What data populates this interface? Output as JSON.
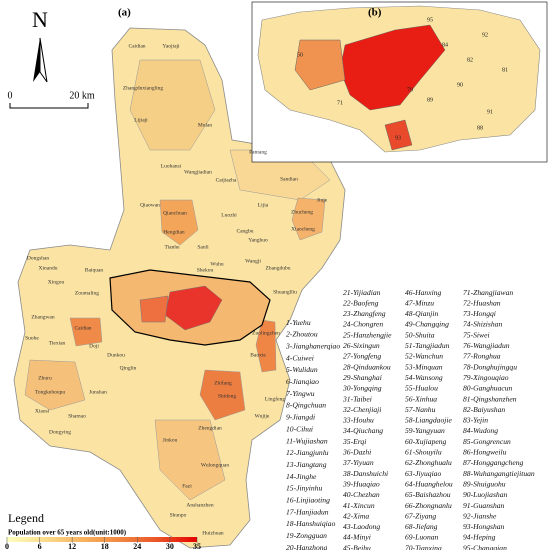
{
  "panel_labels": [
    "(a)",
    "(b)"
  ],
  "north_arrow": "N",
  "scale_bar": {
    "start": "0",
    "end": "20 km"
  },
  "place_labels": [
    "Caidian",
    "Yaojiaji",
    "Zhangduxiangling",
    "Lijiaji",
    "Mulan",
    "Luohansi",
    "Wangjiadian",
    "Caijiazha",
    "Pantang",
    "Sandian",
    "Qiaowan",
    "Qianchuan",
    "Hengdian",
    "Luozhi",
    "Lijia",
    "Zhucheng",
    "Xiaocheng",
    "Jiuje",
    "Cangbu",
    "Wangji",
    "Tianhe",
    "Sanli",
    "Wuhu",
    "Shekou",
    "Yanghuo",
    "Zhangdubu",
    "Shuanglliu",
    "Dongshan",
    "Xinandu",
    "Baiquan",
    "Xingou",
    "Zoumaling",
    "Zhangwan",
    "Caidian",
    "Suohe",
    "Tiexian",
    "Doji",
    "Dunkou",
    "Zhuru",
    "Tongkehoupu",
    "Xiaosi",
    "Shamao",
    "Junshan",
    "Qinglin",
    "Zhifang",
    "Shidong",
    "Lingfeng",
    "Wujije",
    "Zhengdian",
    "Jinkou",
    "Wulongquan",
    "Fazi",
    "Anshanzhen",
    "Shunpo",
    "Huizhuan",
    "Zuolingzhen",
    "Baoxie",
    "Dongying"
  ],
  "inset_labels": [
    "92",
    "91",
    "93",
    "90",
    "89",
    "84",
    "71",
    "82",
    "81",
    "95",
    "88",
    "79",
    "50"
  ],
  "district_list": [
    [
      "1-Yuehu",
      "2-Zhoutou",
      "3-Jianghanerqiao",
      "4-Cuiwei",
      "5-Wulidun",
      "6-Jianqiao",
      "7-Yingwu",
      "8-Qingchuan",
      "9-Jiangdi",
      "10-Cihui",
      "11-Wujiashan",
      "12-Jiangjunlu",
      "13-Jiangtang",
      "14-Jinghe",
      "15-Jinyinhu",
      "16-Linjiaoting",
      "17-Hanjiadun",
      "18-Hanshuiqiao",
      "19-Zongguan",
      "20-Hanzhong"
    ],
    [
      "21-Yijiadian",
      "22-Baofeng",
      "23-Zhangfeng",
      "24-Chongren",
      "25-Hanzhengjie",
      "26-Sixingun",
      "27-Yongfeng",
      "28-Qinduankou",
      "29-Shanghai",
      "30-Yongqing",
      "31-Taibei",
      "32-Chenjiaji",
      "33-Houhu",
      "34-Qiuchang",
      "35-Erqi",
      "36-Dazhi",
      "37-Yiyuan",
      "38-Danshuichi",
      "39-Huaqiao",
      "40-Chezhan",
      "41-Xincun",
      "42-Xima",
      "43-Laodong",
      "44-Minyi",
      "45-Beihu"
    ],
    [
      "46-Hanxing",
      "47-Minzu",
      "48-Qianjin",
      "49-Changqing",
      "50-Shuita",
      "51-Tangjiadun",
      "52-Wanchun",
      "53-Minquan",
      "54-Wansong",
      "55-Hualou",
      "56-Xinhua",
      "57-Nanhu",
      "58-Liangdaojie",
      "59-Yangyuan",
      "60-Xujiapeng",
      "61-Shouyilu",
      "62-Zhonghualu",
      "63-Jiyuqiao",
      "64-Huanghelou",
      "65-Baishazhou",
      "66-Zhongnanlu",
      "67-Ziyang",
      "68-Jiefang",
      "69-Luonan",
      "70-Tianxing"
    ],
    [
      "71-Zhangjiawan",
      "72-Huashan",
      "73-Hongqi",
      "74-Shizishan",
      "75-Siwei",
      "76-Wangjiadun",
      "77-Ronghua",
      "78-Donghujingqu",
      "79-Xingouqiao",
      "80-Ganghuacun",
      "81-Qingshanzhen",
      "82-Baiyushan",
      "83-Yejin",
      "84-Wudong",
      "85-Gongrencun",
      "86-Hongweilu",
      "87-Honggangcheng",
      "88-Wuhangangtiejituan",
      "89-Shuiguohu",
      "90-Luojiashan",
      "91-Guanshan",
      "92-Jianshe",
      "93-Hongshan",
      "94-Heping",
      "95-Changqian"
    ]
  ],
  "legend": {
    "title": "Legend",
    "caption": "Population over 65 years old(unit:1000)",
    "lim": [
      0,
      35
    ],
    "ticks": [
      0,
      6,
      12,
      18,
      24,
      30,
      35
    ],
    "colors": [
      "#ffffbe",
      "#fbdc8c",
      "#f7b25e",
      "#f18640",
      "#ea5227",
      "#e60000"
    ]
  }
}
